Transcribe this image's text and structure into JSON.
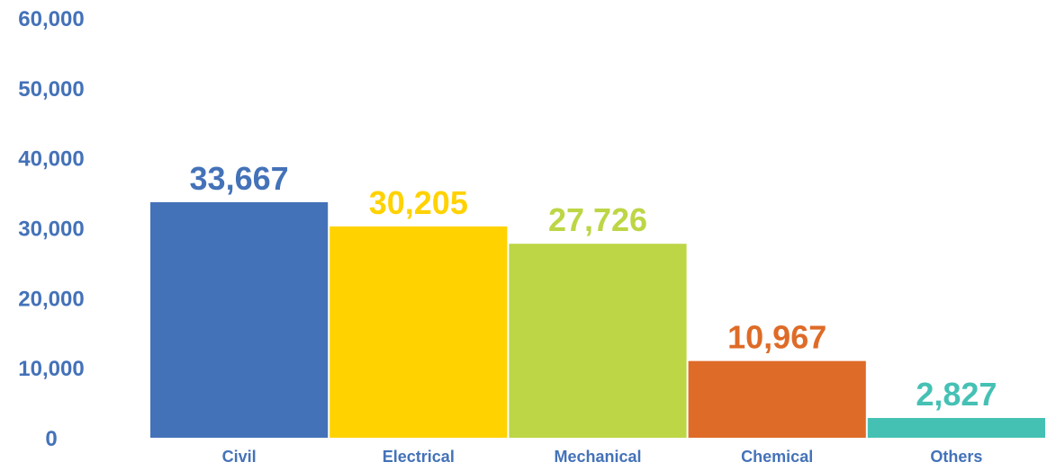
{
  "chart_data": {
    "type": "bar",
    "categories": [
      "Civil",
      "Electrical",
      "Mechanical",
      "Chemical",
      "Others"
    ],
    "values": [
      33667,
      30205,
      27726,
      10967,
      2827
    ],
    "value_labels": [
      "33,667",
      "30,205",
      "27,726",
      "10,967",
      "2,827"
    ],
    "colors": [
      "#4472b8",
      "#ffd200",
      "#bcd645",
      "#de6b27",
      "#45c1b4"
    ],
    "title": "",
    "xlabel": "",
    "ylabel": "",
    "ylim": [
      0,
      60000
    ],
    "yticks": [
      0,
      10000,
      20000,
      30000,
      40000,
      50000,
      60000
    ],
    "ytick_labels": [
      "0",
      "10,000",
      "20,000",
      "30,000",
      "40,000",
      "50,000",
      "60,000"
    ],
    "grid": false,
    "legend": "none",
    "axis_label_color": "#4472b8"
  }
}
